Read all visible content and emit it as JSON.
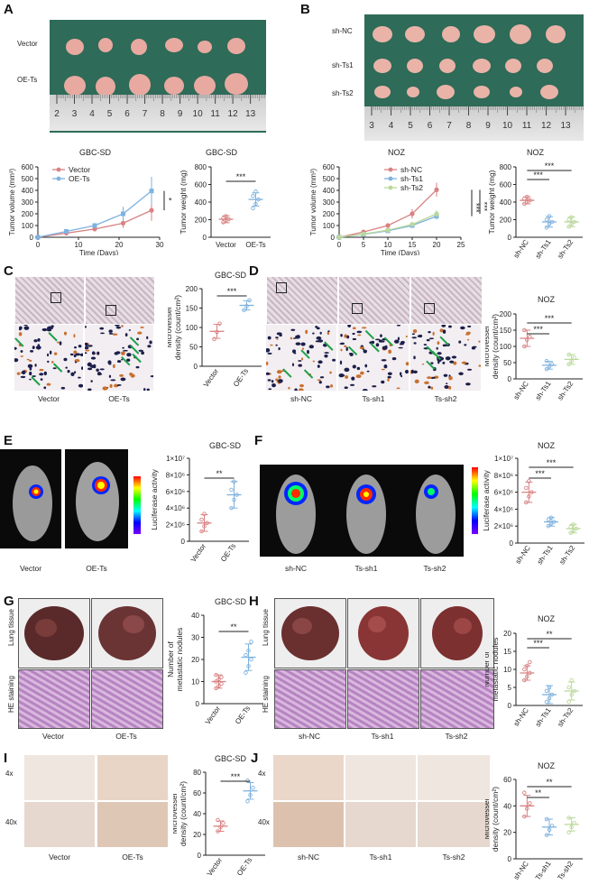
{
  "panels": {
    "A": {
      "label": "A",
      "rows": [
        "Vector",
        "OE-Ts"
      ],
      "ruler": [
        "2",
        "3",
        "4",
        "5",
        "6",
        "7",
        "8",
        "9",
        "10",
        "11",
        "12",
        "13"
      ],
      "volume": {
        "title": "GBC-SD",
        "ylabel": "Tumor volume (mm³)",
        "xlabel": "Time (Days)",
        "yticks": [
          "0",
          "100",
          "200",
          "300",
          "400",
          "500",
          "600"
        ],
        "xticks": [
          "0",
          "10",
          "20",
          "30"
        ],
        "legend": [
          "Vector",
          "OE-Ts"
        ],
        "sig": "*"
      },
      "weight": {
        "title": "GBC-SD",
        "ylabel": "Tumor weight (mg)",
        "yticks": [
          "0",
          "200",
          "400",
          "600",
          "800"
        ],
        "groups": [
          "Vector",
          "OE-Ts"
        ],
        "sig": "***"
      }
    },
    "B": {
      "label": "B",
      "rows": [
        "sh-NC",
        "sh-Ts1",
        "sh-Ts2"
      ],
      "ruler": [
        "3",
        "4",
        "5",
        "6",
        "7",
        "8",
        "9",
        "10",
        "11",
        "12",
        "13"
      ],
      "volume": {
        "title": "NOZ",
        "ylabel": "Tumor volume (mm³)",
        "xlabel": "Time (Days)",
        "yticks": [
          "0",
          "100",
          "200",
          "300",
          "400",
          "500",
          "600"
        ],
        "xticks": [
          "0",
          "5",
          "10",
          "15",
          "20",
          "25"
        ],
        "legend": [
          "sh-NC",
          "sh-Ts1",
          "sh-Ts2"
        ],
        "sig": [
          "***",
          "***"
        ]
      },
      "weight": {
        "title": "NOZ",
        "ylabel": "Tumor weight (mg)",
        "yticks": [
          "0",
          "200",
          "400",
          "600",
          "800"
        ],
        "groups": [
          "sh-NC",
          "sh-Ts1",
          "sh-Ts2"
        ],
        "sig": [
          "***",
          "***"
        ]
      }
    },
    "C": {
      "label": "C",
      "captions": [
        "Vector",
        "OE-Ts"
      ],
      "chart": {
        "title": "GBC-SD",
        "ylabel": "Microvessel density (count/cm²)",
        "yticks": [
          "0",
          "50",
          "100",
          "150",
          "200"
        ],
        "groups": [
          "Vector",
          "OE-Ts"
        ],
        "sig": "***"
      }
    },
    "D": {
      "label": "D",
      "captions": [
        "sh-NC",
        "Ts-sh1",
        "Ts-sh2"
      ],
      "chart": {
        "title": "NOZ",
        "ylabel": "Microvessel density (count/cm²)",
        "yticks": [
          "0",
          "50",
          "100",
          "150",
          "200"
        ],
        "groups": [
          "sh-NC",
          "sh-Ts1",
          "sh-Ts2"
        ],
        "sig": [
          "***",
          "***"
        ]
      }
    },
    "E": {
      "label": "E",
      "captions": [
        "Vector",
        "OE-Ts"
      ],
      "chart": {
        "title": "GBC-SD",
        "ylabel": "Luciferase activity",
        "yticks": [
          "0",
          "2×10⁶",
          "4×10⁶",
          "6×10⁶",
          "8×10⁶",
          "1×10⁷"
        ],
        "groups": [
          "Vector",
          "OE-Ts"
        ],
        "sig": "**"
      }
    },
    "F": {
      "label": "F",
      "captions": [
        "sh-NC",
        "Ts-sh1",
        "Ts-sh2"
      ],
      "chart": {
        "title": "NOZ",
        "ylabel": "Luciferase activity",
        "yticks": [
          "0",
          "2×10⁶",
          "4×10⁶",
          "6×10⁶",
          "8×10⁶",
          "1×10⁷"
        ],
        "groups": [
          "sh-NC",
          "sh-Ts1",
          "sh-Ts2"
        ],
        "sig": [
          "***",
          "***"
        ]
      }
    },
    "G": {
      "label": "G",
      "rows": [
        "Lung tissue",
        "HE staining"
      ],
      "captions": [
        "Vector",
        "OE-Ts"
      ],
      "chart": {
        "title": "GBC-SD",
        "ylabel": "Number of metastatic nodules",
        "yticks": [
          "0",
          "10",
          "20",
          "30",
          "40"
        ],
        "groups": [
          "Vector",
          "OE-Ts"
        ],
        "sig": "**"
      }
    },
    "H": {
      "label": "H",
      "rows": [
        "Lung tissue",
        "HE staining"
      ],
      "captions": [
        "sh-NC",
        "Ts-sh1",
        "Ts-sh2"
      ],
      "chart": {
        "title": "NOZ",
        "ylabel": "Number of metastatic nodules",
        "yticks": [
          "0",
          "5",
          "10",
          "15",
          "20"
        ],
        "groups": [
          "sh-NC",
          "sh-Ts1",
          "sh-Ts2"
        ],
        "sig": [
          "***",
          "**"
        ]
      }
    },
    "I": {
      "label": "I",
      "rows": [
        "4x",
        "40x"
      ],
      "captions": [
        "Vector",
        "OE-Ts"
      ],
      "chart": {
        "title": "GBC-SD",
        "ylabel": "Microvessel density (count/cm²)",
        "yticks": [
          "0",
          "20",
          "40",
          "60",
          "80"
        ],
        "groups": [
          "Vector",
          "OE-Ts"
        ],
        "sig": "***"
      }
    },
    "J": {
      "label": "J",
      "rows": [
        "4x",
        "40x"
      ],
      "captions": [
        "sh-NC",
        "Ts-sh1",
        "Ts-sh2"
      ],
      "chart": {
        "title": "NOZ",
        "ylabel": "Microvessel density (count/cm²)",
        "yticks": [
          "0",
          "20",
          "40",
          "60"
        ],
        "groups": [
          "sh-NC",
          "Ts-sh1",
          "Ts-sh2"
        ],
        "sig": [
          "**",
          "**"
        ]
      }
    }
  },
  "chart_data": [
    {
      "id": "A-volume",
      "type": "line",
      "title": "GBC-SD",
      "xlabel": "Time (Days)",
      "ylabel": "Tumor volume (mm³)",
      "xlim": [
        0,
        30
      ],
      "ylim": [
        0,
        600
      ],
      "x": [
        0,
        7,
        14,
        21,
        28
      ],
      "series": [
        {
          "name": "Vector",
          "color": "#d98282",
          "values": [
            0,
            35,
            70,
            120,
            230
          ],
          "err": [
            0,
            8,
            15,
            40,
            90
          ]
        },
        {
          "name": "OE-Ts",
          "color": "#7fb2de",
          "values": [
            0,
            50,
            100,
            200,
            395
          ],
          "err": [
            0,
            10,
            20,
            60,
            120
          ]
        }
      ]
    },
    {
      "id": "A-weight",
      "type": "scatter",
      "title": "GBC-SD",
      "ylabel": "Tumor weight (mg)",
      "ylim": [
        0,
        800
      ],
      "categories": [
        "Vector",
        "OE-Ts"
      ],
      "groups": [
        {
          "name": "Vector",
          "color": "#d98282",
          "mean": 205,
          "sd": 40,
          "points": [
            170,
            190,
            205,
            215,
            240
          ]
        },
        {
          "name": "OE-Ts",
          "color": "#7fb2de",
          "mean": 430,
          "sd": 75,
          "points": [
            330,
            380,
            430,
            470,
            520
          ]
        }
      ]
    },
    {
      "id": "B-volume",
      "type": "line",
      "title": "NOZ",
      "xlabel": "Time (Days)",
      "ylabel": "Tumor volume (mm³)",
      "xlim": [
        0,
        25
      ],
      "ylim": [
        0,
        600
      ],
      "x": [
        0,
        5,
        10,
        15,
        20
      ],
      "series": [
        {
          "name": "sh-NC",
          "color": "#d98282",
          "values": [
            0,
            45,
            100,
            200,
            405
          ],
          "err": [
            0,
            10,
            20,
            40,
            60
          ]
        },
        {
          "name": "sh-Ts1",
          "color": "#7fb2de",
          "values": [
            0,
            25,
            55,
            100,
            180
          ],
          "err": [
            0,
            6,
            12,
            20,
            30
          ]
        },
        {
          "name": "sh-Ts2",
          "color": "#b9d99a",
          "values": [
            0,
            28,
            60,
            110,
            200
          ],
          "err": [
            0,
            6,
            12,
            20,
            30
          ]
        }
      ]
    },
    {
      "id": "B-weight",
      "type": "scatter",
      "title": "NOZ",
      "ylabel": "Tumor weight (mg)",
      "ylim": [
        0,
        800
      ],
      "categories": [
        "sh-NC",
        "sh-Ts1",
        "sh-Ts2"
      ],
      "groups": [
        {
          "name": "sh-NC",
          "color": "#d98282",
          "mean": 420,
          "sd": 40,
          "points": [
            380,
            400,
            420,
            440,
            460
          ]
        },
        {
          "name": "sh-Ts1",
          "color": "#7fb2de",
          "mean": 175,
          "sd": 60,
          "points": [
            110,
            150,
            175,
            200,
            240
          ]
        },
        {
          "name": "sh-Ts2",
          "color": "#b9d99a",
          "mean": 175,
          "sd": 55,
          "points": [
            120,
            150,
            175,
            200,
            230
          ]
        }
      ]
    },
    {
      "id": "C",
      "type": "scatter",
      "title": "GBC-SD",
      "ylabel": "Microvessel density (count/cm²)",
      "ylim": [
        0,
        200
      ],
      "categories": [
        "Vector",
        "OE-Ts"
      ],
      "groups": [
        {
          "name": "Vector",
          "color": "#d98282",
          "mean": 90,
          "sd": 18,
          "points": [
            70,
            88,
            110
          ]
        },
        {
          "name": "OE-Ts",
          "color": "#7fb2de",
          "mean": 157,
          "sd": 12,
          "points": [
            145,
            155,
            170
          ]
        }
      ]
    },
    {
      "id": "D",
      "type": "scatter",
      "title": "NOZ",
      "ylabel": "Microvessel density (count/cm²)",
      "ylim": [
        0,
        200
      ],
      "categories": [
        "sh-NC",
        "sh-Ts1",
        "sh-Ts2"
      ],
      "groups": [
        {
          "name": "sh-NC",
          "color": "#d98282",
          "mean": 125,
          "sd": 25,
          "points": [
            100,
            120,
            130,
            150
          ]
        },
        {
          "name": "sh-Ts1",
          "color": "#7fb2de",
          "mean": 42,
          "sd": 12,
          "points": [
            30,
            38,
            45,
            55
          ]
        },
        {
          "name": "sh-Ts2",
          "color": "#b9d99a",
          "mean": 60,
          "sd": 15,
          "points": [
            45,
            55,
            65,
            75
          ]
        }
      ]
    },
    {
      "id": "E",
      "type": "scatter",
      "title": "GBC-SD",
      "ylabel": "Luciferase activity",
      "ylim": [
        0,
        10000000
      ],
      "categories": [
        "Vector",
        "OE-Ts"
      ],
      "groups": [
        {
          "name": "Vector",
          "color": "#d98282",
          "mean": 2200000,
          "sd": 1000000,
          "points": [
            1200000,
            1800000,
            2200000,
            2600000,
            3300000
          ]
        },
        {
          "name": "OE-Ts",
          "color": "#7fb2de",
          "mean": 5600000,
          "sd": 1600000,
          "points": [
            4000000,
            5000000,
            5600000,
            6200000,
            7200000
          ]
        }
      ]
    },
    {
      "id": "F",
      "type": "scatter",
      "title": "NOZ",
      "ylabel": "Luciferase activity",
      "ylim": [
        0,
        10000000
      ],
      "categories": [
        "sh-NC",
        "sh-Ts1",
        "sh-Ts2"
      ],
      "groups": [
        {
          "name": "sh-NC",
          "color": "#d98282",
          "mean": 6000000,
          "sd": 1200000,
          "points": [
            4800000,
            5500000,
            6000000,
            6500000,
            7300000
          ]
        },
        {
          "name": "sh-Ts1",
          "color": "#7fb2de",
          "mean": 2500000,
          "sd": 500000,
          "points": [
            2000000,
            2300000,
            2500000,
            2800000,
            3000000
          ]
        },
        {
          "name": "sh-Ts2",
          "color": "#b9d99a",
          "mean": 1700000,
          "sd": 500000,
          "points": [
            1200000,
            1500000,
            1700000,
            1900000,
            2200000
          ]
        }
      ]
    },
    {
      "id": "G",
      "type": "scatter",
      "title": "GBC-SD",
      "ylabel": "Number of metastatic nodules",
      "ylim": [
        0,
        40
      ],
      "categories": [
        "Vector",
        "OE-Ts"
      ],
      "groups": [
        {
          "name": "Vector",
          "color": "#d98282",
          "mean": 10,
          "sd": 3,
          "points": [
            7,
            8,
            9,
            10,
            11,
            12,
            13
          ]
        },
        {
          "name": "OE-Ts",
          "color": "#7fb2de",
          "mean": 21,
          "sd": 6,
          "points": [
            14,
            17,
            20,
            22,
            24,
            28
          ]
        }
      ]
    },
    {
      "id": "H",
      "type": "scatter",
      "title": "NOZ",
      "ylabel": "Number of metastatic nodules",
      "ylim": [
        0,
        20
      ],
      "categories": [
        "sh-NC",
        "sh-Ts1",
        "sh-Ts2"
      ],
      "groups": [
        {
          "name": "sh-NC",
          "color": "#d98282",
          "mean": 9,
          "sd": 2,
          "points": [
            7,
            8,
            9,
            10,
            11,
            12
          ]
        },
        {
          "name": "sh-Ts1",
          "color": "#7fb2de",
          "mean": 3,
          "sd": 2.5,
          "points": [
            1,
            2,
            3,
            4,
            5
          ]
        },
        {
          "name": "sh-Ts2",
          "color": "#b9d99a",
          "mean": 4,
          "sd": 2.5,
          "points": [
            1,
            3,
            4,
            5,
            7
          ]
        }
      ]
    },
    {
      "id": "I",
      "type": "scatter",
      "title": "GBC-SD",
      "ylabel": "Microvessel density (count/cm²)",
      "ylim": [
        0,
        80
      ],
      "categories": [
        "Vector",
        "OE-Ts"
      ],
      "groups": [
        {
          "name": "Vector",
          "color": "#d98282",
          "mean": 28,
          "sd": 5,
          "points": [
            23,
            27,
            31,
            34
          ]
        },
        {
          "name": "OE-Ts",
          "color": "#7fb2de",
          "mean": 62,
          "sd": 8,
          "points": [
            52,
            58,
            65,
            72
          ]
        }
      ]
    },
    {
      "id": "J",
      "type": "scatter",
      "title": "NOZ",
      "ylabel": "Microvessel density (count/cm²)",
      "ylim": [
        0,
        60
      ],
      "categories": [
        "sh-NC",
        "Ts-sh1",
        "Ts-sh2"
      ],
      "groups": [
        {
          "name": "sh-NC",
          "color": "#d98282",
          "mean": 40,
          "sd": 8,
          "points": [
            32,
            38,
            42,
            50
          ]
        },
        {
          "name": "Ts-sh1",
          "color": "#7fb2de",
          "mean": 24,
          "sd": 6,
          "points": [
            18,
            22,
            25,
            30
          ]
        },
        {
          "name": "Ts-sh2",
          "color": "#b9d99a",
          "mean": 26,
          "sd": 5,
          "points": [
            20,
            24,
            27,
            31
          ]
        }
      ]
    }
  ]
}
